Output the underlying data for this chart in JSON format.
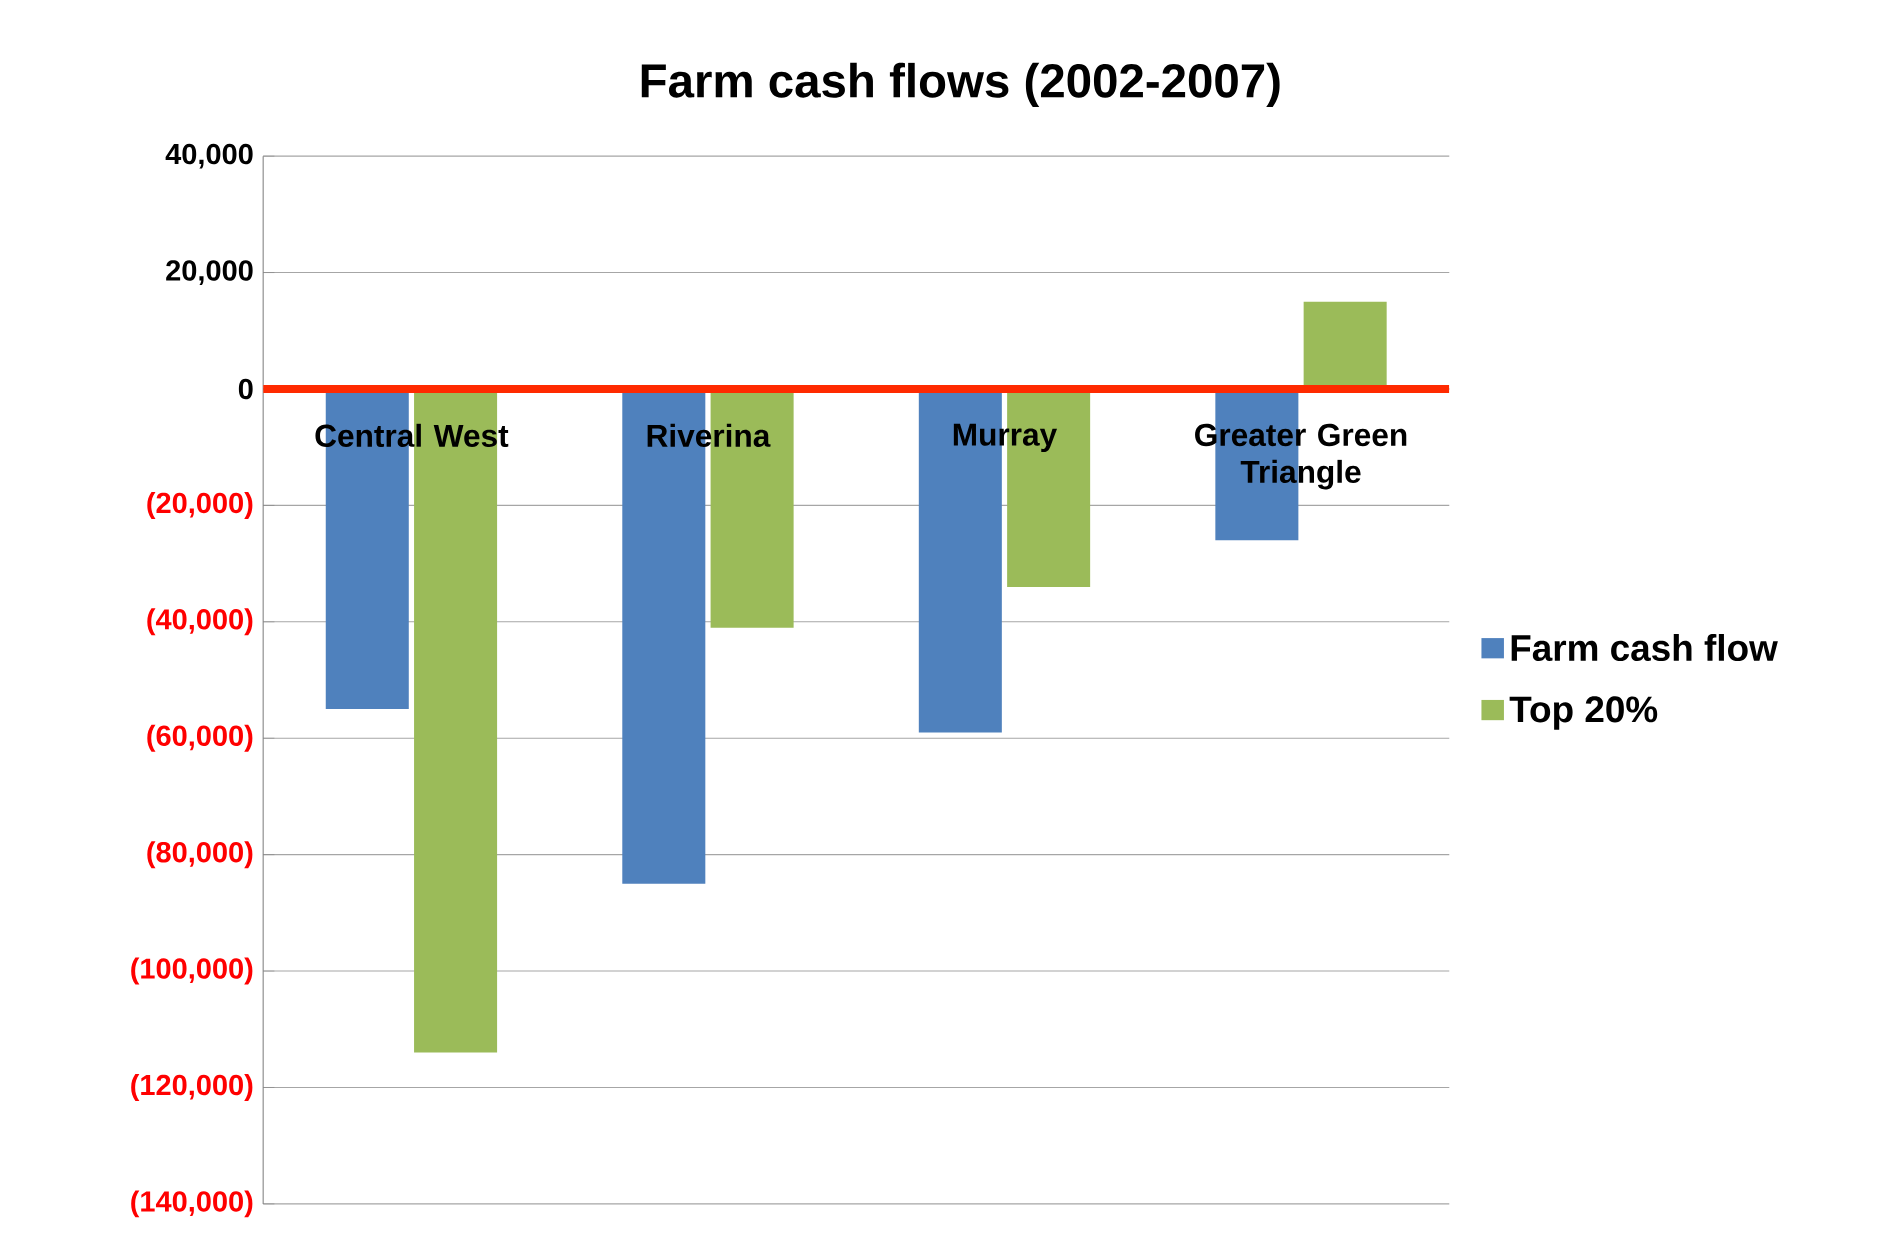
{
  "chart_data": {
    "type": "bar",
    "title": "Farm cash flows (2002-2007)",
    "categories": [
      "Central West",
      "Riverina",
      "Murray",
      "Greater Green Triangle"
    ],
    "series": [
      {
        "name": "Farm cash flow",
        "color": "#4f81bd",
        "values": [
          -55000,
          -85000,
          -59000,
          -26000
        ]
      },
      {
        "name": "Top 20%",
        "color": "#9bbb59",
        "values": [
          -114000,
          -41000,
          -34000,
          15000
        ]
      }
    ],
    "ylim": [
      -140000,
      40000
    ],
    "yticks": [
      {
        "value": 40000,
        "label": "40,000"
      },
      {
        "value": 20000,
        "label": "20,000"
      },
      {
        "value": 0,
        "label": "0"
      },
      {
        "value": -20000,
        "label": "(20,000)"
      },
      {
        "value": -40000,
        "label": "(40,000)"
      },
      {
        "value": -60000,
        "label": "(60,000)"
      },
      {
        "value": -80000,
        "label": "(80,000)"
      },
      {
        "value": -100000,
        "label": "(100,000)"
      },
      {
        "value": -120000,
        "label": "(120,000)"
      },
      {
        "value": -140000,
        "label": "(140,000)"
      }
    ],
    "grid": "y",
    "legend": "right",
    "ref_lines": [
      {
        "axis": "y",
        "value": 0,
        "color": "#ff2a00"
      }
    ]
  }
}
